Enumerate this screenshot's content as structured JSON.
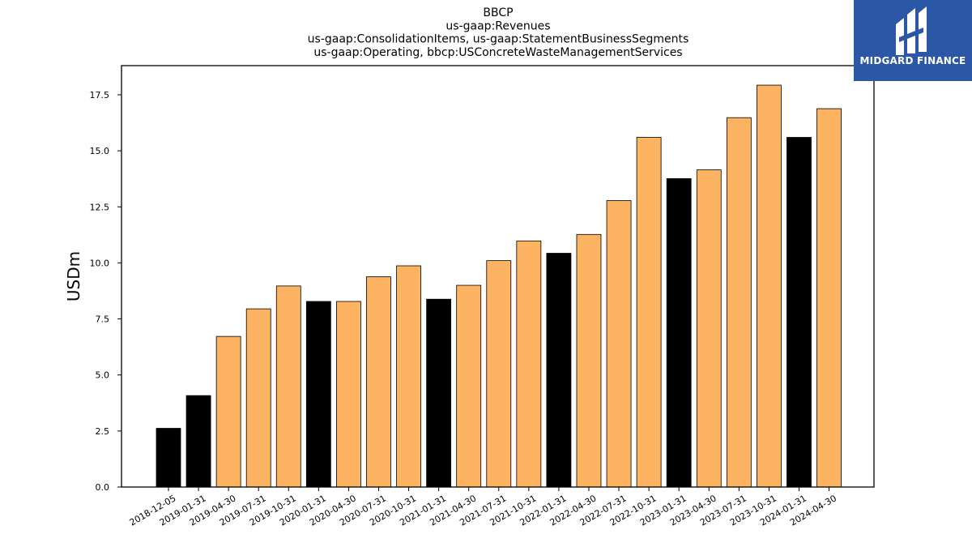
{
  "chart_data": {
    "type": "bar",
    "title_lines": [
      "BBCP",
      "us-gaap:Revenues",
      "us-gaap:ConsolidationItems, us-gaap:StatementBusinessSegments",
      "us-gaap:Operating, bbcp:USConcreteWasteManagementServices"
    ],
    "xlabel": "",
    "ylabel": "USDm",
    "ylim": [
      0,
      18.8
    ],
    "yticks": [
      "0.0",
      "2.5",
      "5.0",
      "7.5",
      "10.0",
      "12.5",
      "15.0",
      "17.5"
    ],
    "grid": false,
    "categories": [
      "2018-12-05",
      "2019-01-31",
      "2019-04-30",
      "2019-07-31",
      "2019-10-31",
      "2020-01-31",
      "2020-04-30",
      "2020-07-31",
      "2020-10-31",
      "2021-01-31",
      "2021-04-30",
      "2021-07-31",
      "2021-10-31",
      "2022-01-31",
      "2022-04-30",
      "2022-07-31",
      "2022-10-31",
      "2023-01-31",
      "2023-04-30",
      "2023-07-31",
      "2023-10-31",
      "2024-01-31",
      "2024-04-30"
    ],
    "values": [
      2.62,
      4.08,
      6.72,
      7.95,
      8.97,
      8.28,
      8.28,
      9.38,
      9.87,
      8.38,
      9.0,
      10.1,
      10.98,
      10.43,
      11.27,
      12.78,
      15.6,
      13.76,
      14.15,
      16.48,
      17.93,
      15.6,
      16.88
    ],
    "bar_types": [
      "annual",
      "annual",
      "quarter",
      "quarter",
      "quarter",
      "annual",
      "quarter",
      "quarter",
      "quarter",
      "annual",
      "quarter",
      "quarter",
      "quarter",
      "annual",
      "quarter",
      "quarter",
      "quarter",
      "annual",
      "quarter",
      "quarter",
      "quarter",
      "annual",
      "quarter"
    ],
    "colors": {
      "annual": "#000000",
      "quarter": "#fdb462",
      "edge": "#000000"
    }
  },
  "logo": {
    "text": "MIDGARD FINANCE",
    "icon": "midgard-logo-icon",
    "background": "#2b57a6"
  }
}
